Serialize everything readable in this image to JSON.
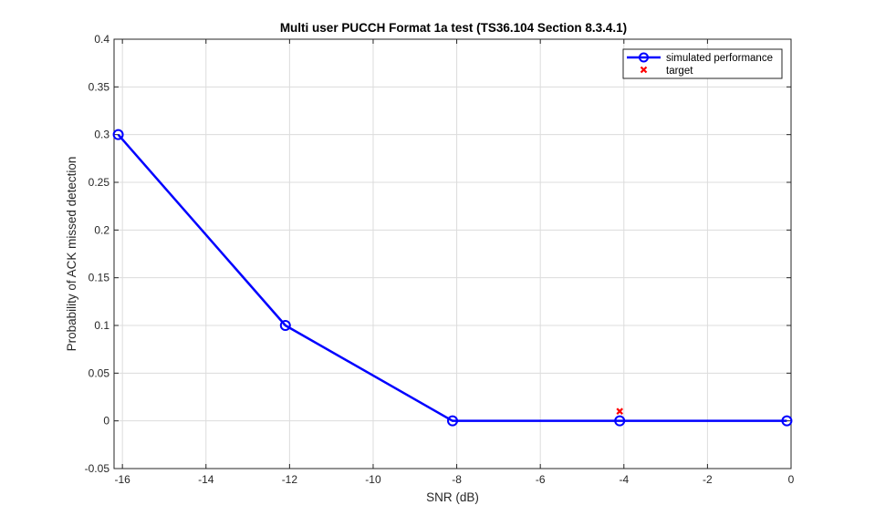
{
  "chart_data": {
    "type": "line",
    "title": "Multi user PUCCH Format 1a test (TS36.104 Section 8.3.4.1)",
    "xlabel": "SNR (dB)",
    "ylabel": "Probability of ACK missed detection",
    "xlim": [
      -16.2,
      0
    ],
    "ylim": [
      -0.05,
      0.4
    ],
    "xticks": [
      -16,
      -14,
      -12,
      -10,
      -8,
      -6,
      -4,
      -2,
      0
    ],
    "yticks": [
      -0.05,
      0,
      0.05,
      0.1,
      0.15,
      0.2,
      0.25,
      0.3,
      0.35,
      0.4
    ],
    "xtick_labels": [
      "-16",
      "-14",
      "-12",
      "-10",
      "-8",
      "-6",
      "-4",
      "-2",
      "0"
    ],
    "ytick_labels": [
      "-0.05",
      "0",
      "0.05",
      "0.1",
      "0.15",
      "0.2",
      "0.25",
      "0.3",
      "0.35",
      "0.4"
    ],
    "grid": true,
    "legend_position": "top-right",
    "series": [
      {
        "name": "simulated performance",
        "marker": "circle",
        "color": "#0000ff",
        "x": [
          -16.1,
          -12.1,
          -8.1,
          -4.1,
          -0.1
        ],
        "y": [
          0.3,
          0.1,
          0,
          0,
          0
        ]
      },
      {
        "name": "target",
        "marker": "x",
        "color": "#ff0000",
        "x": [
          -4.1
        ],
        "y": [
          0.01
        ]
      }
    ]
  }
}
